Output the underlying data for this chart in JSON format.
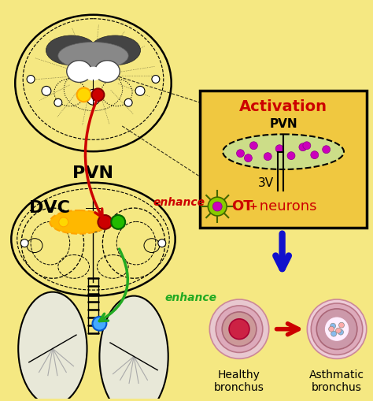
{
  "bg_color": "#F5E882",
  "pvn_label": "PVN",
  "dvc_label": "DVC",
  "enhance_label1": "enhance",
  "enhance_label2": "enhance",
  "activation_title": "Activation",
  "pvn_sub": "PVN",
  "3v_label": "3V",
  "healthy_label": "Healthy\nbronchus",
  "asthmatic_label": "Asthmatic\nbronchus",
  "red_color": "#CC0000",
  "green_color": "#22AA22",
  "blue_color": "#1111CC",
  "yellow": "#FFD700",
  "orange": "#FFA500",
  "activation_box_color": "#F0C840",
  "brain_fill": "#F5E882",
  "brain_dark": "#555555",
  "brain_mid": "#AAAAAA",
  "dvc_yellow": "#FFB800",
  "neuron_green": "#88CC00",
  "magenta": "#CC00BB"
}
